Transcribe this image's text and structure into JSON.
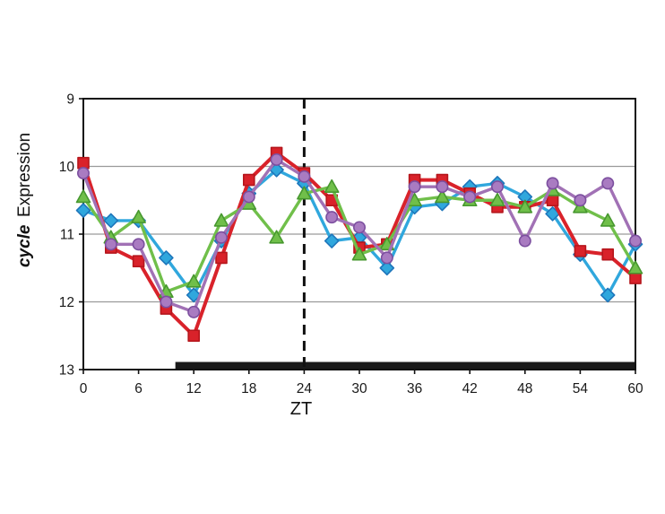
{
  "chart_data": {
    "type": "line",
    "x_label": "ZT",
    "y_label_italic": "cycle",
    "y_label_regular": "Expression",
    "y_axis_inverted": true,
    "ylim_top_bottom": [
      9,
      13
    ],
    "x_range": [
      0,
      60
    ],
    "x_ticks": [
      "0",
      "6",
      "12",
      "18",
      "24",
      "30",
      "36",
      "42",
      "48",
      "54",
      "60"
    ],
    "y_ticks": [
      "9",
      "10",
      "11",
      "12",
      "13"
    ],
    "gridline_values": [
      10,
      11,
      12
    ],
    "dashed_vline_x": 24,
    "significance_bar": {
      "x_start": 10,
      "x_end": 60
    },
    "colors": {
      "axis": "#111111",
      "gridline": "#9a9a9a",
      "bar": "#1a1a1a",
      "red": "#D9222A",
      "blue": "#30A7DD",
      "green": "#70BF4A",
      "purple": "#A171B5"
    },
    "x": [
      0,
      3,
      6,
      9,
      12,
      15,
      18,
      21,
      24,
      27,
      30,
      33,
      36,
      39,
      42,
      45,
      48,
      51,
      54,
      57,
      60
    ],
    "series": [
      {
        "name": "blue-diamond",
        "marker": "diamond",
        "color": "#30A7DD",
        "fill": "#30A7DD",
        "edge": "#1E76BB",
        "line_width": 3.4,
        "values": [
          10.65,
          10.8,
          10.8,
          11.35,
          11.9,
          11.1,
          10.4,
          10.05,
          10.25,
          11.1,
          11.05,
          11.5,
          10.6,
          10.55,
          10.3,
          10.25,
          10.45,
          10.7,
          11.3,
          11.9,
          11.15
        ]
      },
      {
        "name": "red-square",
        "marker": "square",
        "color": "#D9222A",
        "fill": "#D9222A",
        "edge": "#B5161C",
        "line_width": 4,
        "values": [
          9.95,
          11.2,
          11.4,
          12.1,
          12.5,
          11.35,
          10.2,
          9.8,
          10.1,
          10.5,
          11.2,
          11.15,
          10.2,
          10.2,
          10.4,
          10.6,
          10.6,
          10.5,
          11.25,
          11.3,
          11.65
        ]
      },
      {
        "name": "green-triangle",
        "marker": "triangle",
        "color": "#70BF4A",
        "fill": "#70BF4A",
        "edge": "#47982F",
        "line_width": 3.4,
        "values": [
          10.45,
          11.05,
          10.75,
          11.85,
          11.7,
          10.8,
          10.55,
          11.05,
          10.4,
          10.3,
          11.3,
          11.15,
          10.5,
          10.45,
          10.5,
          10.5,
          10.6,
          10.35,
          10.6,
          10.8,
          11.5
        ]
      },
      {
        "name": "purple-circle",
        "marker": "circle",
        "color": "#A171B5",
        "fill": "#A97BC1",
        "edge": "#7C4F9F",
        "line_width": 3.4,
        "values": [
          10.1,
          11.15,
          11.15,
          12.0,
          12.15,
          11.05,
          10.45,
          9.9,
          10.15,
          10.75,
          10.9,
          11.35,
          10.3,
          10.3,
          10.45,
          10.3,
          11.1,
          10.25,
          10.5,
          10.25,
          11.1
        ]
      }
    ]
  }
}
